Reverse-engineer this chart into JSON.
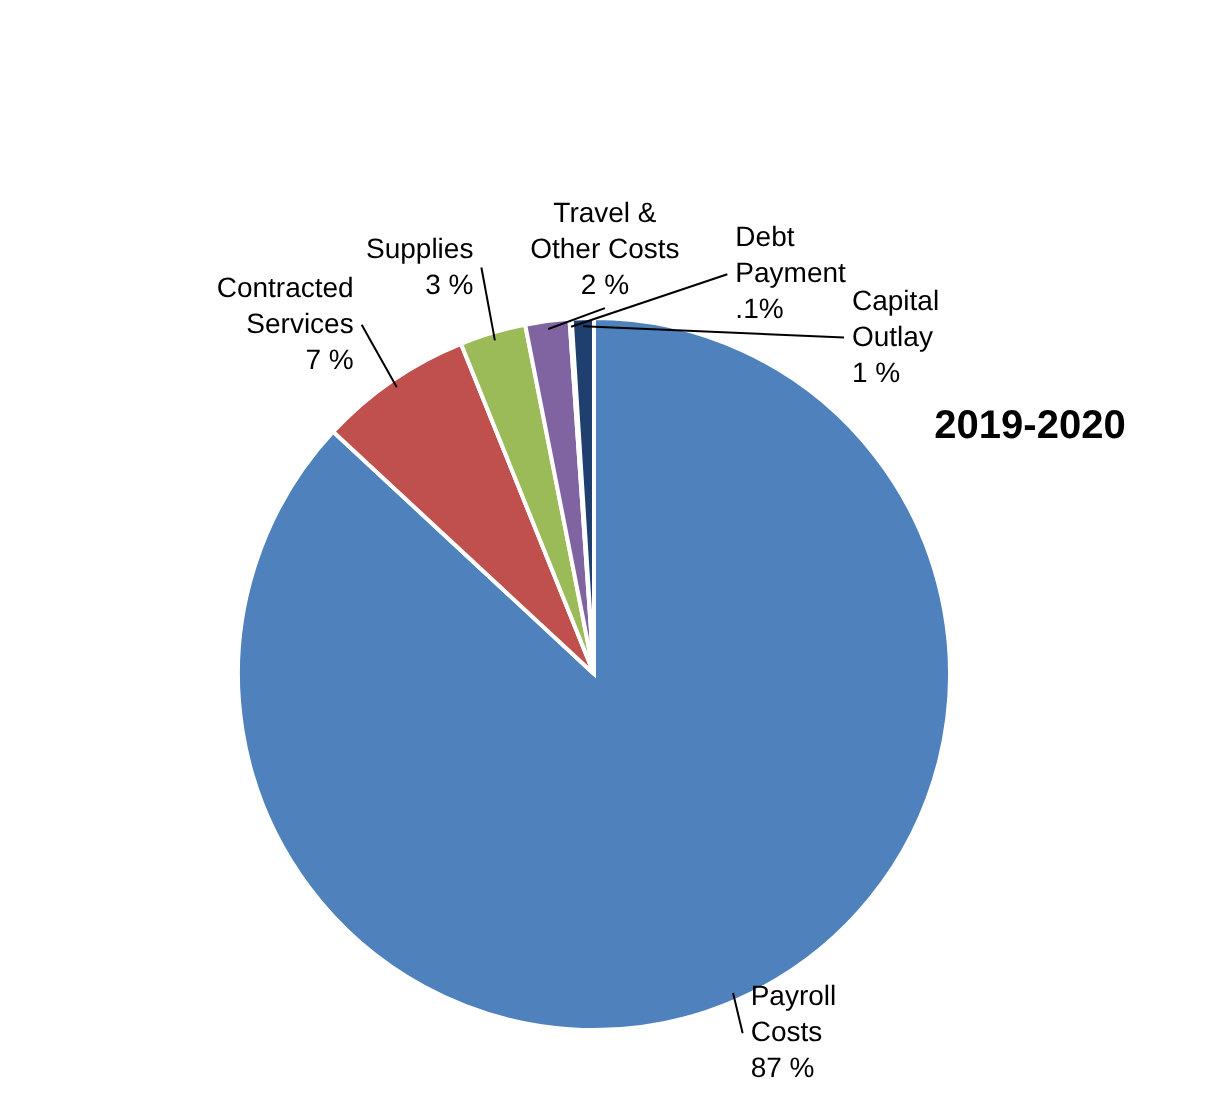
{
  "chart_data": {
    "type": "pie",
    "title": "2019-2020",
    "categories": [
      "Payroll Costs",
      "Contracted Services",
      "Supplies",
      "Travel & Other Costs",
      "Debt Payment",
      "Capital Outlay"
    ],
    "values": [
      87,
      7,
      3,
      2,
      0.1,
      1
    ],
    "value_labels": [
      "87 %",
      "7 %",
      "3 %",
      "2 %",
      ".1%",
      "1 %"
    ],
    "colors": [
      "#4f81bd",
      "#c0504d",
      "#9bbb59",
      "#8064a2",
      "#4bacc6",
      "#1f3f6e"
    ]
  }
}
